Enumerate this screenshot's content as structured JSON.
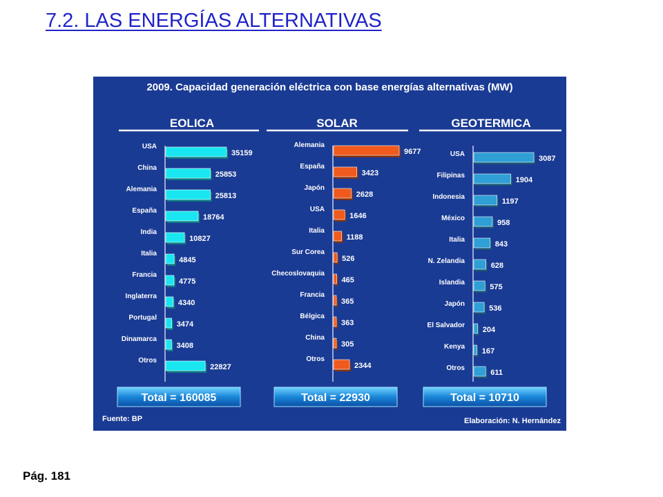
{
  "slide": {
    "title": "7.2. LAS ENERGÍAS ALTERNATIVAS",
    "page": "Pág. 181"
  },
  "colors": {
    "background": "#1a3b94",
    "eolica": "#19e6f0",
    "solar": "#f05a1e",
    "geotermica": "#2f9fd6",
    "title_link": "#1f23c8"
  },
  "chart_data": {
    "type": "bar",
    "title": "2009. Capacidad generación eléctrica con base energías alternativas (MW)",
    "source": "Fuente: BP",
    "credit": "Elaboración: N. Hernández",
    "panels": [
      {
        "name": "EOLICA",
        "orientation": "horizontal",
        "categories": [
          "USA",
          "China",
          "Alemania",
          "España",
          "India",
          "Italia",
          "Francia",
          "Inglaterra",
          "Portugal",
          "Dinamarca",
          "Otros"
        ],
        "values": [
          35159,
          25853,
          25813,
          18764,
          10827,
          4845,
          4775,
          4340,
          3474,
          3408,
          22827
        ],
        "total": "Total = 160085"
      },
      {
        "name": "SOLAR",
        "orientation": "horizontal",
        "categories": [
          "Alemania",
          "España",
          "Japón",
          "USA",
          "Italia",
          "Sur Corea",
          "Checoslovaquia",
          "Francia",
          "Bélgica",
          "China",
          "Otros"
        ],
        "values": [
          9677,
          3423,
          2628,
          1646,
          1188,
          526,
          465,
          365,
          363,
          305,
          2344
        ],
        "total": "Total = 22930"
      },
      {
        "name": "GEOTERMICA",
        "orientation": "horizontal",
        "categories": [
          "USA",
          "Filipinas",
          "Indonesia",
          "México",
          "Italia",
          "N. Zelandia",
          "Islandia",
          "Japón",
          "El Salvador",
          "Kenya",
          "Otros"
        ],
        "values": [
          3087,
          1904,
          1197,
          958,
          843,
          628,
          575,
          536,
          204,
          167,
          611
        ],
        "total": "Total = 10710"
      }
    ]
  }
}
